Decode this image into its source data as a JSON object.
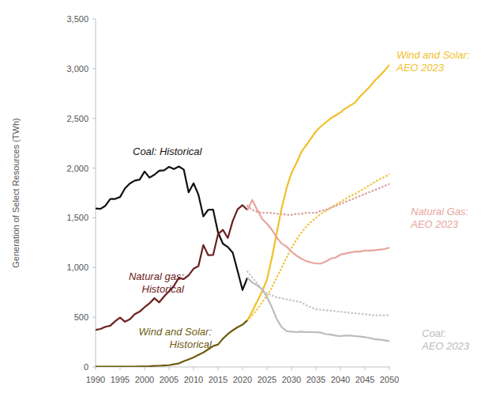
{
  "chart_data": {
    "type": "line",
    "y_label": "Generation of Select Resources (TWh)",
    "x": [
      1990,
      1991,
      1992,
      1993,
      1994,
      1995,
      1996,
      1997,
      1998,
      1999,
      2000,
      2001,
      2002,
      2003,
      2004,
      2005,
      2006,
      2007,
      2008,
      2009,
      2010,
      2011,
      2012,
      2013,
      2014,
      2015,
      2016,
      2017,
      2018,
      2019,
      2020,
      2021,
      2022,
      2023,
      2024,
      2025,
      2026,
      2027,
      2028,
      2029,
      2030,
      2031,
      2032,
      2033,
      2034,
      2035,
      2036,
      2037,
      2038,
      2039,
      2040,
      2041,
      2042,
      2043,
      2044,
      2045,
      2046,
      2047,
      2048,
      2049,
      2050
    ],
    "xlim": [
      1990,
      2050
    ],
    "xticks": [
      1990,
      1995,
      2000,
      2005,
      2010,
      2015,
      2020,
      2025,
      2030,
      2035,
      2040,
      2045,
      2050
    ],
    "ylim": [
      0,
      3500
    ],
    "yticks": [
      0,
      500,
      {
        "value": 1000,
        "label": "1,000"
      },
      {
        "value": 1500,
        "label": "1,500"
      },
      {
        "value": 2000,
        "label": "2,000"
      },
      {
        "value": 2500,
        "label": "2,500"
      },
      {
        "value": 3000,
        "label": "3,000"
      },
      {
        "value": 3500,
        "label": "3,500"
      }
    ],
    "grid": false,
    "series": [
      {
        "name": "Coal: Historical",
        "color": "#111111",
        "line_style": "solid",
        "values": [
          1594,
          1590,
          1621,
          1690,
          1690,
          1709,
          1796,
          1845,
          1874,
          1884,
          1966,
          1904,
          1933,
          1974,
          1978,
          2013,
          1991,
          2016,
          1986,
          1756,
          1847,
          1733,
          1514,
          1581,
          1582,
          1352,
          1239,
          1206,
          1149,
          965,
          774,
          898,
          null,
          null,
          null,
          null,
          null,
          null,
          null,
          null,
          null,
          null,
          null,
          null,
          null,
          null,
          null,
          null,
          null,
          null,
          null,
          null,
          null,
          null,
          null,
          null,
          null,
          null,
          null,
          null,
          null
        ]
      },
      {
        "name": "Natural gas: Historical",
        "color": "#6b2020",
        "line_style": "solid",
        "values": [
          373,
          382,
          404,
          415,
          460,
          496,
          455,
          479,
          531,
          556,
          601,
          639,
          691,
          650,
          710,
          761,
          816,
          897,
          883,
          921,
          988,
          1014,
          1226,
          1124,
          1127,
          1335,
          1379,
          1297,
          1469,
          1586,
          1627,
          1579,
          null,
          null,
          null,
          null,
          null,
          null,
          null,
          null,
          null,
          null,
          null,
          null,
          null,
          null,
          null,
          null,
          null,
          null,
          null,
          null,
          null,
          null,
          null,
          null,
          null,
          null,
          null,
          null,
          null
        ]
      },
      {
        "name": "Wind and Solar: Historical",
        "color": "#6e5c12",
        "line_style": "solid",
        "values": [
          3,
          3,
          3,
          3,
          4,
          4,
          4,
          4,
          4,
          5,
          6,
          7,
          11,
          12,
          15,
          18,
          27,
          35,
          57,
          75,
          96,
          122,
          145,
          177,
          210,
          226,
          284,
          331,
          368,
          400,
          425,
          470,
          null,
          null,
          null,
          null,
          null,
          null,
          null,
          null,
          null,
          null,
          null,
          null,
          null,
          null,
          null,
          null,
          null,
          null,
          null,
          null,
          null,
          null,
          null,
          null,
          null,
          null,
          null,
          null,
          null
        ]
      },
      {
        "name": "Wind and Solar: AEO 2023",
        "color": "#f2bf2a",
        "line_style": "solid",
        "values": [
          null,
          null,
          null,
          null,
          null,
          null,
          null,
          null,
          null,
          null,
          null,
          null,
          null,
          null,
          null,
          null,
          null,
          null,
          null,
          null,
          null,
          null,
          null,
          null,
          null,
          null,
          null,
          null,
          null,
          null,
          null,
          470,
          560,
          660,
          760,
          880,
          1100,
          1350,
          1600,
          1800,
          1950,
          2050,
          2160,
          2230,
          2300,
          2370,
          2420,
          2460,
          2500,
          2530,
          2560,
          2600,
          2630,
          2660,
          2720,
          2770,
          2820,
          2880,
          2930,
          2980,
          3040
        ]
      },
      {
        "name": "Natural Gas: AEO 2023",
        "color": "#e8a59e",
        "line_style": "solid",
        "values": [
          null,
          null,
          null,
          null,
          null,
          null,
          null,
          null,
          null,
          null,
          null,
          null,
          null,
          null,
          null,
          null,
          null,
          null,
          null,
          null,
          null,
          null,
          null,
          null,
          null,
          null,
          null,
          null,
          null,
          null,
          null,
          1579,
          1680,
          1580,
          1490,
          1440,
          1380,
          1300,
          1240,
          1210,
          1160,
          1120,
          1090,
          1065,
          1050,
          1040,
          1040,
          1060,
          1090,
          1100,
          1130,
          1140,
          1150,
          1160,
          1160,
          1170,
          1170,
          1175,
          1180,
          1185,
          1200
        ]
      },
      {
        "name": "Coal: AEO 2023",
        "color": "#bcbcbc",
        "line_style": "solid",
        "values": [
          null,
          null,
          null,
          null,
          null,
          null,
          null,
          null,
          null,
          null,
          null,
          null,
          null,
          null,
          null,
          null,
          null,
          null,
          null,
          null,
          null,
          null,
          null,
          null,
          null,
          null,
          null,
          null,
          null,
          null,
          null,
          898,
          850,
          820,
          780,
          700,
          600,
          480,
          400,
          360,
          355,
          350,
          355,
          350,
          350,
          350,
          345,
          330,
          325,
          315,
          310,
          315,
          315,
          310,
          305,
          300,
          290,
          280,
          275,
          268,
          260
        ]
      },
      {
        "color": "#f2c445",
        "line_style": "dotted",
        "values": [
          null,
          null,
          null,
          null,
          null,
          null,
          null,
          null,
          null,
          null,
          null,
          null,
          null,
          null,
          null,
          null,
          null,
          null,
          null,
          null,
          null,
          null,
          null,
          null,
          null,
          null,
          null,
          null,
          null,
          null,
          null,
          470,
          520,
          580,
          650,
          720,
          800,
          900,
          1000,
          1100,
          1200,
          1280,
          1350,
          1410,
          1460,
          1500,
          1540,
          1570,
          1600,
          1630,
          1660,
          1690,
          1720,
          1740,
          1770,
          1800,
          1830,
          1860,
          1890,
          1910,
          1940
        ]
      },
      {
        "color": "#d9a19c",
        "line_style": "dotted",
        "values": [
          null,
          null,
          null,
          null,
          null,
          null,
          null,
          null,
          null,
          null,
          null,
          null,
          null,
          null,
          null,
          null,
          null,
          null,
          null,
          null,
          null,
          null,
          null,
          null,
          null,
          null,
          null,
          null,
          null,
          null,
          null,
          1620,
          1580,
          1560,
          1550,
          1550,
          1550,
          1540,
          1540,
          1530,
          1530,
          1540,
          1540,
          1550,
          1550,
          1550,
          1570,
          1580,
          1600,
          1620,
          1640,
          1660,
          1680,
          1700,
          1720,
          1740,
          1760,
          1780,
          1800,
          1820,
          1840
        ]
      },
      {
        "color": "#c6c6c6",
        "line_style": "dotted",
        "values": [
          null,
          null,
          null,
          null,
          null,
          null,
          null,
          null,
          null,
          null,
          null,
          null,
          null,
          null,
          null,
          null,
          null,
          null,
          null,
          null,
          null,
          null,
          null,
          null,
          null,
          null,
          null,
          null,
          null,
          null,
          null,
          960,
          900,
          840,
          780,
          740,
          720,
          700,
          690,
          680,
          670,
          660,
          650,
          620,
          600,
          580,
          575,
          570,
          565,
          560,
          555,
          550,
          545,
          540,
          535,
          530,
          525,
          520,
          520,
          520,
          520
        ]
      }
    ]
  }
}
